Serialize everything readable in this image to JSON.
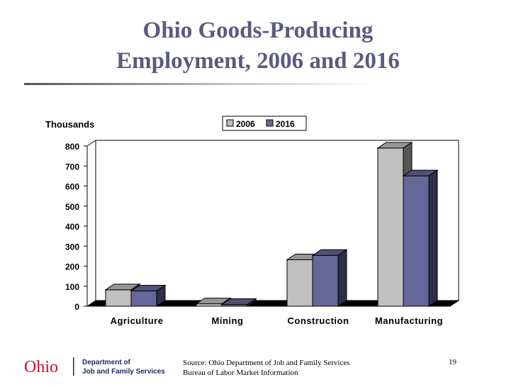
{
  "slide": {
    "title_line1": "Ohio Goods-Producing",
    "title_line2": "Employment, 2006 and 2016",
    "source_line1": "Source: Ohio Department of Job and Family Services",
    "source_line2": "Bureau of Labor Market Information",
    "page_number": "19",
    "logo_word": "Ohio",
    "logo_dept_line1": "Department of",
    "logo_dept_line2": "Job and Family Services"
  },
  "colors": {
    "title": "#5a5a80",
    "series_2006": "#c0c0c0",
    "series_2016": "#666699",
    "logo_red": "#c8102e",
    "logo_navy": "#1a2a5e"
  },
  "chart_data": {
    "type": "bar",
    "ylabel": "Thousands",
    "categories": [
      "Agriculture",
      "Mining",
      "Construction",
      "Manufacturing"
    ],
    "series": [
      {
        "name": "2006",
        "values": [
          82,
          12,
          232,
          790
        ]
      },
      {
        "name": "2016",
        "values": [
          76,
          9,
          254,
          651
        ]
      }
    ],
    "ylim": [
      0,
      800
    ],
    "yticks": [
      "0",
      "100",
      "200",
      "300",
      "400",
      "500",
      "600",
      "700",
      "800"
    ],
    "legend_position": "top-center",
    "grid": false,
    "style": "3d"
  }
}
